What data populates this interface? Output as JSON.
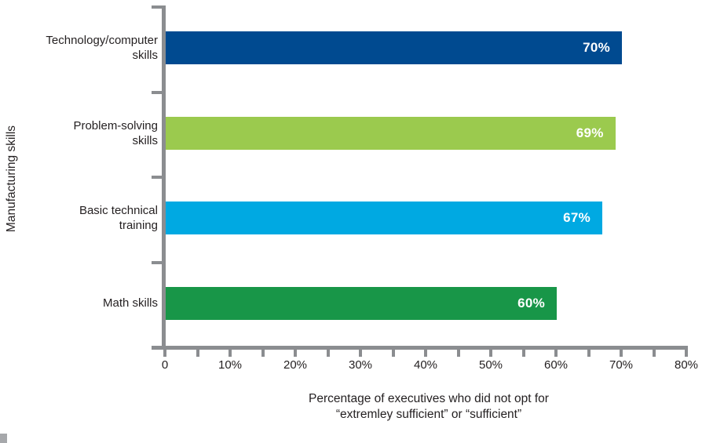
{
  "chart_data": {
    "type": "bar",
    "orientation": "horizontal",
    "title": "",
    "ylabel": "Manufacturing skills",
    "xlabel_lines": [
      "Percentage of executives who did not opt for",
      "“extremley sufficient” or “sufficient”"
    ],
    "categories": [
      "Technology/computer skills",
      "Problem-solving skills",
      "Basic technical training",
      "Math skills"
    ],
    "category_label_lines": [
      [
        "Technology/computer",
        "skills"
      ],
      [
        "Problem-solving",
        "skills"
      ],
      [
        "Basic technical",
        "training"
      ],
      [
        "Math skills"
      ]
    ],
    "values": [
      70,
      69,
      67,
      60
    ],
    "value_labels": [
      "70%",
      "69%",
      "67%",
      "60%"
    ],
    "bar_colors": [
      "#004a90",
      "#9bca4e",
      "#00a9e2",
      "#189648"
    ],
    "xlim": [
      0,
      80
    ],
    "x_major_ticks": [
      0,
      10,
      20,
      30,
      40,
      50,
      60,
      70,
      80
    ],
    "x_tick_labels": [
      "0",
      "10%",
      "20%",
      "30%",
      "40%",
      "50%",
      "60%",
      "70%",
      "80%"
    ],
    "x_minor_tick_step": 5,
    "grid": "off",
    "legend": "none",
    "axis_color": "#8b8d90",
    "text_color": "#231f20",
    "value_label_color": "#ffffff"
  },
  "decorations": {
    "corner_mark_color": "#a6a8ab"
  }
}
